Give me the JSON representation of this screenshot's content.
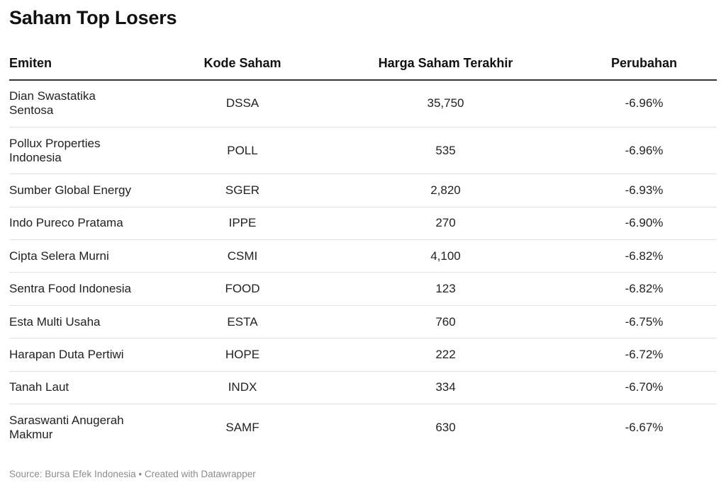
{
  "title": "Saham Top Losers",
  "footer": {
    "source": "Source: Bursa Efek Indonesia",
    "separator": "•",
    "credit": "Created with Datawrapper"
  },
  "chart_data": {
    "type": "table",
    "title": "Saham Top Losers",
    "columns": [
      "Emiten",
      "Kode Saham",
      "Harga Saham Terakhir",
      "Perubahan"
    ],
    "rows": [
      {
        "emiten": "Dian Swastatika Sentosa",
        "kode": "DSSA",
        "harga": "35,750",
        "perubahan": "-6.96%"
      },
      {
        "emiten": "Pollux Properties Indonesia",
        "kode": "POLL",
        "harga": "535",
        "perubahan": "-6.96%"
      },
      {
        "emiten": "Sumber Global Energy",
        "kode": "SGER",
        "harga": "2,820",
        "perubahan": "-6.93%"
      },
      {
        "emiten": "Indo Pureco Pratama",
        "kode": "IPPE",
        "harga": "270",
        "perubahan": "-6.90%"
      },
      {
        "emiten": "Cipta Selera Murni",
        "kode": "CSMI",
        "harga": "4,100",
        "perubahan": "-6.82%"
      },
      {
        "emiten": "Sentra Food Indonesia",
        "kode": "FOOD",
        "harga": "123",
        "perubahan": "-6.82%"
      },
      {
        "emiten": "Esta Multi Usaha",
        "kode": "ESTA",
        "harga": "760",
        "perubahan": "-6.75%"
      },
      {
        "emiten": "Harapan Duta Pertiwi",
        "kode": "HOPE",
        "harga": "222",
        "perubahan": "-6.72%"
      },
      {
        "emiten": "Tanah Laut",
        "kode": "INDX",
        "harga": "334",
        "perubahan": "-6.70%"
      },
      {
        "emiten": "Saraswanti Anugerah Makmur",
        "kode": "SAMF",
        "harga": "630",
        "perubahan": "-6.67%"
      }
    ]
  }
}
